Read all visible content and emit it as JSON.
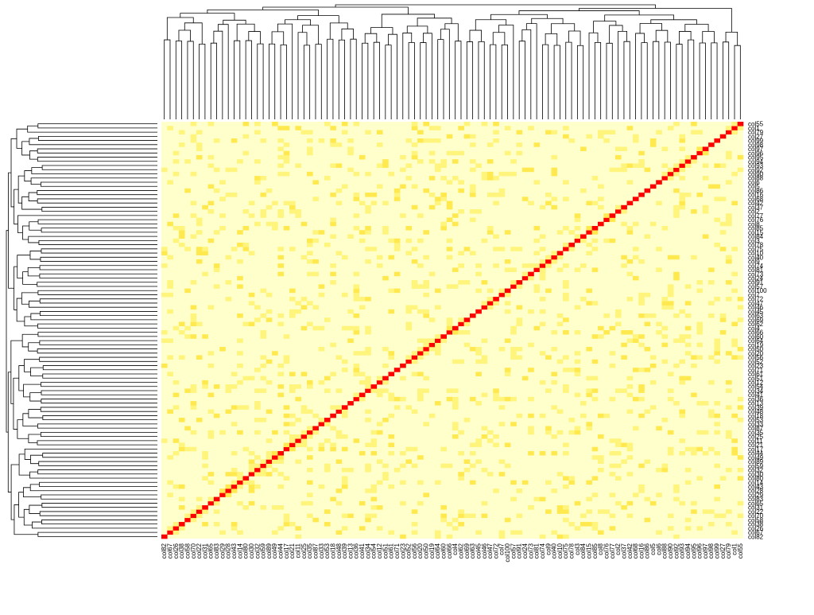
{
  "chart_data": {
    "type": "heatmap",
    "title": "",
    "xlabel": "",
    "ylabel": "",
    "dendrogram_rows": true,
    "dendrogram_cols": true,
    "colors": {
      "high": "#ff0000",
      "mid_high": "#ff8a00",
      "mid": "#ffe94f",
      "low_mid": "#fff47c",
      "low": "#ffffcc",
      "line": "#000000",
      "background": "#ffffff"
    },
    "n": 100,
    "column_labels": [
      "col82",
      "col67",
      "col26",
      "col38",
      "col58",
      "col70",
      "col22",
      "col31",
      "col65",
      "col83",
      "col29",
      "col28",
      "col43",
      "col14",
      "col80",
      "col30",
      "col32",
      "col59",
      "col89",
      "col49",
      "col44",
      "col17",
      "col21",
      "col11",
      "col25",
      "col35",
      "col87",
      "col33",
      "col53",
      "col18",
      "col48",
      "col39",
      "col13",
      "col36",
      "col41",
      "col34",
      "col54",
      "col12",
      "col51",
      "col61",
      "col71",
      "col23",
      "col52",
      "col56",
      "col20",
      "col50",
      "col19",
      "col64",
      "col60",
      "col66",
      "col4",
      "col62",
      "col69",
      "col63",
      "col45",
      "col46",
      "col47",
      "col72",
      "col7",
      "col100",
      "col57",
      "col91",
      "col24",
      "col73",
      "col81",
      "col74",
      "col9",
      "col40",
      "col10",
      "col75",
      "col78",
      "col3",
      "col84",
      "col15",
      "col85",
      "col8",
      "col76",
      "col77",
      "col2",
      "col37",
      "col42",
      "col68",
      "col16",
      "col86",
      "col5",
      "col6",
      "col88",
      "col90",
      "col92",
      "col93",
      "col94",
      "col95",
      "col96",
      "col97",
      "col98",
      "col99",
      "col27",
      "col79",
      "col1",
      "col55"
    ],
    "row_labels": [
      "col82",
      "col67",
      "col26",
      "col38",
      "col58",
      "col70",
      "col22",
      "col31",
      "col65",
      "col83",
      "col29",
      "col28",
      "col43",
      "col14",
      "col80",
      "col30",
      "col32",
      "col59",
      "col89",
      "col49",
      "col44",
      "col17",
      "col21",
      "col11",
      "col25",
      "col35",
      "col87",
      "col33",
      "col53",
      "col18",
      "col48",
      "col39",
      "col13",
      "col36",
      "col41",
      "col34",
      "col54",
      "col12",
      "col51",
      "col61",
      "col71",
      "col23",
      "col52",
      "col56",
      "col20",
      "col50",
      "col19",
      "col64",
      "col60",
      "col66",
      "col4",
      "col62",
      "col69",
      "col63",
      "col45",
      "col46",
      "col47",
      "col72",
      "col7",
      "col100",
      "col57",
      "col91",
      "col24",
      "col73",
      "col81",
      "col74",
      "col9",
      "col40",
      "col10",
      "col75",
      "col78",
      "col3",
      "col84",
      "col15",
      "col85",
      "col8",
      "col76",
      "col77",
      "col2",
      "col37",
      "col42",
      "col68",
      "col16",
      "col86",
      "col5",
      "col6",
      "col88",
      "col90",
      "col92",
      "col93",
      "col94",
      "col95",
      "col96",
      "col97",
      "col98",
      "col99",
      "col27",
      "col79",
      "col1",
      "col55"
    ],
    "diagonal_value": 1.0,
    "value_levels": [
      0.0,
      0.2,
      0.4,
      1.0
    ],
    "note": "Symmetric correlation-style heatmap; diagonal cells are maximum (red), most off-diagonal cells are near zero (pale yellow) with scattered low positive values (yellow)."
  }
}
